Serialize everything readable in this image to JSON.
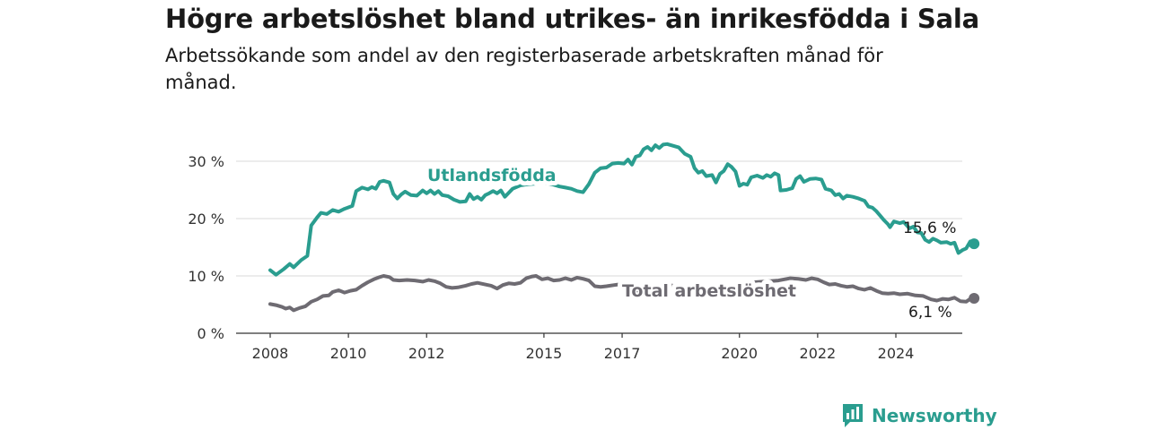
{
  "title": "Högre arbetslöshet bland utrikes- än inrikesfödda i Sala",
  "subtitle": "Arbetssökande som andel av den registerbaserade arbetskraften månad för månad.",
  "brand": {
    "name": "Newsworthy",
    "icon": "bar-chart-logo-icon",
    "color": "#2a9d8f"
  },
  "chart_data": {
    "type": "line",
    "title": "Högre arbetslöshet bland utrikes- än inrikesfödda i Sala",
    "subtitle": "Arbetssökande som andel av den registerbaserade arbetskraften månad för månad.",
    "xlabel": "",
    "ylabel": "",
    "xlim": [
      2007.8,
      2025.6
    ],
    "ylim": [
      0,
      32
    ],
    "grid": true,
    "x_ticks": [
      2008,
      2010,
      2012,
      2015,
      2017,
      2020,
      2022,
      2024
    ],
    "y_ticks": [
      {
        "value": 0,
        "label": "0 %"
      },
      {
        "value": 10,
        "label": "10 %"
      },
      {
        "value": 20,
        "label": "20 %"
      },
      {
        "value": 30,
        "label": "30 %"
      }
    ],
    "series": [
      {
        "name": "Utlandsfödda",
        "color": "#2a9d8f",
        "end_label": "15,6 %",
        "points": [
          [
            2008.0,
            11.0
          ],
          [
            2008.15,
            10.2
          ],
          [
            2008.35,
            11.2
          ],
          [
            2008.5,
            12.1
          ],
          [
            2008.6,
            11.5
          ],
          [
            2008.8,
            12.8
          ],
          [
            2008.95,
            13.5
          ],
          [
            2009.05,
            18.8
          ],
          [
            2009.2,
            20.2
          ],
          [
            2009.3,
            21.0
          ],
          [
            2009.45,
            20.8
          ],
          [
            2009.6,
            21.5
          ],
          [
            2009.75,
            21.2
          ],
          [
            2009.9,
            21.7
          ],
          [
            2010.1,
            22.2
          ],
          [
            2010.2,
            24.8
          ],
          [
            2010.35,
            25.4
          ],
          [
            2010.5,
            25.1
          ],
          [
            2010.6,
            25.5
          ],
          [
            2010.7,
            25.2
          ],
          [
            2010.8,
            26.4
          ],
          [
            2010.9,
            26.6
          ],
          [
            2011.05,
            26.3
          ],
          [
            2011.15,
            24.3
          ],
          [
            2011.25,
            23.5
          ],
          [
            2011.35,
            24.2
          ],
          [
            2011.45,
            24.7
          ],
          [
            2011.6,
            24.1
          ],
          [
            2011.75,
            24.0
          ],
          [
            2011.9,
            24.9
          ],
          [
            2012.0,
            24.4
          ],
          [
            2012.1,
            24.9
          ],
          [
            2012.2,
            24.3
          ],
          [
            2012.3,
            24.8
          ],
          [
            2012.4,
            24.1
          ],
          [
            2012.55,
            23.9
          ],
          [
            2012.7,
            23.3
          ],
          [
            2012.85,
            22.9
          ],
          [
            2013.0,
            23.0
          ],
          [
            2013.1,
            24.3
          ],
          [
            2013.2,
            23.4
          ],
          [
            2013.3,
            23.8
          ],
          [
            2013.4,
            23.3
          ],
          [
            2013.5,
            24.1
          ],
          [
            2013.6,
            24.4
          ],
          [
            2013.7,
            24.8
          ],
          [
            2013.8,
            24.4
          ],
          [
            2013.9,
            24.9
          ],
          [
            2014.0,
            23.8
          ],
          [
            2014.1,
            24.5
          ],
          [
            2014.2,
            25.2
          ],
          [
            2014.4,
            25.8
          ],
          [
            2014.6,
            26.0
          ],
          [
            2014.8,
            26.1
          ],
          [
            2015.0,
            26.2
          ],
          [
            2015.2,
            26.0
          ],
          [
            2015.4,
            25.6
          ],
          [
            2015.55,
            25.4
          ],
          [
            2015.7,
            25.2
          ],
          [
            2015.85,
            24.8
          ],
          [
            2016.0,
            24.6
          ],
          [
            2016.15,
            26.0
          ],
          [
            2016.3,
            28.0
          ],
          [
            2016.45,
            28.8
          ],
          [
            2016.6,
            28.9
          ],
          [
            2016.75,
            29.6
          ],
          [
            2016.9,
            29.7
          ],
          [
            2017.05,
            29.6
          ],
          [
            2017.15,
            30.3
          ],
          [
            2017.25,
            29.4
          ],
          [
            2017.35,
            30.8
          ],
          [
            2017.45,
            31.0
          ],
          [
            2017.55,
            32.1
          ],
          [
            2017.65,
            32.5
          ],
          [
            2017.75,
            31.9
          ],
          [
            2017.85,
            32.8
          ],
          [
            2017.95,
            32.3
          ],
          [
            2018.05,
            32.9
          ],
          [
            2018.15,
            33.0
          ],
          [
            2018.3,
            32.7
          ],
          [
            2018.45,
            32.4
          ],
          [
            2018.6,
            31.3
          ],
          [
            2018.75,
            30.8
          ],
          [
            2018.85,
            28.8
          ],
          [
            2018.95,
            28.0
          ],
          [
            2019.05,
            28.3
          ],
          [
            2019.15,
            27.4
          ],
          [
            2019.3,
            27.6
          ],
          [
            2019.4,
            26.3
          ],
          [
            2019.5,
            27.8
          ],
          [
            2019.6,
            28.3
          ],
          [
            2019.7,
            29.5
          ],
          [
            2019.8,
            29.0
          ],
          [
            2019.9,
            28.2
          ],
          [
            2020.0,
            25.7
          ],
          [
            2020.1,
            26.1
          ],
          [
            2020.2,
            25.9
          ],
          [
            2020.3,
            27.2
          ],
          [
            2020.45,
            27.5
          ],
          [
            2020.6,
            27.1
          ],
          [
            2020.7,
            27.6
          ],
          [
            2020.8,
            27.3
          ],
          [
            2020.9,
            27.9
          ],
          [
            2021.0,
            27.6
          ],
          [
            2021.05,
            24.9
          ],
          [
            2021.2,
            25.0
          ],
          [
            2021.35,
            25.3
          ],
          [
            2021.45,
            26.9
          ],
          [
            2021.55,
            27.4
          ],
          [
            2021.65,
            26.4
          ],
          [
            2021.8,
            26.9
          ],
          [
            2021.95,
            27.0
          ],
          [
            2022.1,
            26.8
          ],
          [
            2022.2,
            25.2
          ],
          [
            2022.35,
            24.9
          ],
          [
            2022.45,
            24.1
          ],
          [
            2022.55,
            24.3
          ],
          [
            2022.65,
            23.5
          ],
          [
            2022.75,
            24.0
          ],
          [
            2022.9,
            23.8
          ],
          [
            2023.05,
            23.5
          ],
          [
            2023.2,
            23.1
          ],
          [
            2023.3,
            22.1
          ],
          [
            2023.4,
            21.9
          ],
          [
            2023.5,
            21.3
          ],
          [
            2023.6,
            20.5
          ],
          [
            2023.7,
            19.7
          ],
          [
            2023.8,
            19.0
          ],
          [
            2023.85,
            18.5
          ],
          [
            2023.95,
            19.5
          ],
          [
            2024.1,
            19.2
          ],
          [
            2024.2,
            19.4
          ],
          [
            2024.35,
            18.3
          ],
          [
            2024.45,
            18.6
          ],
          [
            2024.55,
            17.6
          ],
          [
            2024.65,
            17.5
          ],
          [
            2024.75,
            16.3
          ],
          [
            2024.85,
            15.9
          ],
          [
            2024.95,
            16.5
          ],
          [
            2025.05,
            16.2
          ],
          [
            2025.15,
            15.8
          ],
          [
            2025.3,
            15.9
          ],
          [
            2025.4,
            15.6
          ],
          [
            2025.5,
            15.8
          ],
          [
            2025.6,
            14.0
          ],
          [
            2025.7,
            14.5
          ],
          [
            2025.8,
            14.8
          ],
          [
            2025.9,
            16.0
          ],
          [
            2026.0,
            15.6
          ]
        ]
      },
      {
        "name": "Total arbetslöshet",
        "color": "#6e6b72",
        "end_label": "6,1 %",
        "points": [
          [
            2008.0,
            5.1
          ],
          [
            2008.15,
            4.9
          ],
          [
            2008.3,
            4.6
          ],
          [
            2008.4,
            4.3
          ],
          [
            2008.5,
            4.5
          ],
          [
            2008.6,
            4.0
          ],
          [
            2008.75,
            4.4
          ],
          [
            2008.9,
            4.7
          ],
          [
            2009.05,
            5.5
          ],
          [
            2009.2,
            5.9
          ],
          [
            2009.35,
            6.5
          ],
          [
            2009.5,
            6.6
          ],
          [
            2009.6,
            7.2
          ],
          [
            2009.75,
            7.5
          ],
          [
            2009.9,
            7.1
          ],
          [
            2010.05,
            7.4
          ],
          [
            2010.2,
            7.6
          ],
          [
            2010.35,
            8.3
          ],
          [
            2010.5,
            8.9
          ],
          [
            2010.65,
            9.4
          ],
          [
            2010.8,
            9.8
          ],
          [
            2010.9,
            10.0
          ],
          [
            2011.05,
            9.8
          ],
          [
            2011.15,
            9.3
          ],
          [
            2011.3,
            9.2
          ],
          [
            2011.5,
            9.3
          ],
          [
            2011.7,
            9.2
          ],
          [
            2011.9,
            9.0
          ],
          [
            2012.05,
            9.3
          ],
          [
            2012.2,
            9.1
          ],
          [
            2012.35,
            8.7
          ],
          [
            2012.5,
            8.1
          ],
          [
            2012.65,
            7.9
          ],
          [
            2012.8,
            8.0
          ],
          [
            2013.0,
            8.3
          ],
          [
            2013.15,
            8.6
          ],
          [
            2013.3,
            8.8
          ],
          [
            2013.5,
            8.5
          ],
          [
            2013.65,
            8.3
          ],
          [
            2013.8,
            7.8
          ],
          [
            2013.95,
            8.4
          ],
          [
            2014.1,
            8.7
          ],
          [
            2014.25,
            8.6
          ],
          [
            2014.4,
            8.8
          ],
          [
            2014.55,
            9.6
          ],
          [
            2014.7,
            9.9
          ],
          [
            2014.8,
            10.0
          ],
          [
            2014.95,
            9.4
          ],
          [
            2015.1,
            9.6
          ],
          [
            2015.25,
            9.2
          ],
          [
            2015.4,
            9.3
          ],
          [
            2015.55,
            9.6
          ],
          [
            2015.7,
            9.3
          ],
          [
            2015.85,
            9.7
          ],
          [
            2016.0,
            9.5
          ],
          [
            2016.15,
            9.2
          ],
          [
            2016.3,
            8.2
          ],
          [
            2016.45,
            8.1
          ],
          [
            2016.6,
            8.2
          ],
          [
            2016.8,
            8.4
          ],
          [
            2017.0,
            8.6
          ],
          [
            2017.15,
            8.4
          ],
          [
            2017.3,
            7.5
          ],
          [
            2017.45,
            7.2
          ],
          [
            2017.6,
            7.0
          ],
          [
            2017.7,
            7.5
          ],
          [
            2017.85,
            7.6
          ],
          [
            2018.0,
            7.9
          ],
          [
            2018.15,
            8.5
          ],
          [
            2018.3,
            8.3
          ],
          [
            2018.45,
            7.7
          ],
          [
            2018.6,
            7.8
          ],
          [
            2018.75,
            7.5
          ],
          [
            2018.9,
            7.6
          ],
          [
            2019.05,
            7.8
          ],
          [
            2019.2,
            7.7
          ],
          [
            2019.4,
            8.0
          ],
          [
            2019.6,
            8.2
          ],
          [
            2019.8,
            8.4
          ],
          [
            2020.0,
            8.5
          ],
          [
            2020.2,
            8.7
          ],
          [
            2020.4,
            8.9
          ],
          [
            2020.6,
            9.0
          ],
          [
            2020.8,
            9.1
          ],
          [
            2021.0,
            9.2
          ],
          [
            2021.15,
            9.4
          ],
          [
            2021.3,
            9.6
          ],
          [
            2021.5,
            9.5
          ],
          [
            2021.7,
            9.3
          ],
          [
            2021.85,
            9.6
          ],
          [
            2022.0,
            9.4
          ],
          [
            2022.15,
            8.9
          ],
          [
            2022.3,
            8.5
          ],
          [
            2022.45,
            8.6
          ],
          [
            2022.6,
            8.3
          ],
          [
            2022.75,
            8.1
          ],
          [
            2022.9,
            8.2
          ],
          [
            2023.05,
            7.8
          ],
          [
            2023.2,
            7.6
          ],
          [
            2023.35,
            7.9
          ],
          [
            2023.5,
            7.4
          ],
          [
            2023.65,
            7.0
          ],
          [
            2023.8,
            6.9
          ],
          [
            2023.95,
            7.0
          ],
          [
            2024.1,
            6.8
          ],
          [
            2024.3,
            6.9
          ],
          [
            2024.5,
            6.6
          ],
          [
            2024.7,
            6.5
          ],
          [
            2024.9,
            5.9
          ],
          [
            2025.05,
            5.7
          ],
          [
            2025.2,
            6.0
          ],
          [
            2025.35,
            5.9
          ],
          [
            2025.5,
            6.2
          ],
          [
            2025.65,
            5.6
          ],
          [
            2025.8,
            5.5
          ],
          [
            2025.9,
            6.0
          ],
          [
            2026.0,
            6.1
          ]
        ]
      }
    ]
  }
}
